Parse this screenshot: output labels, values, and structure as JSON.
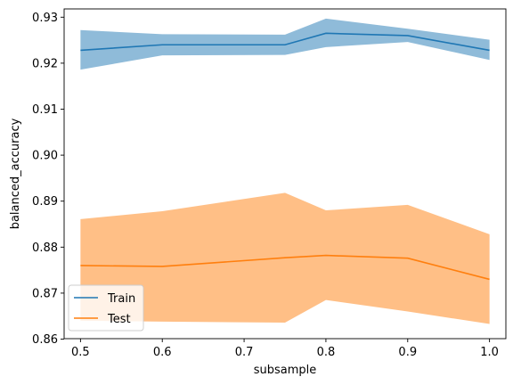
{
  "chart_data": {
    "type": "line",
    "xlabel": "subsample",
    "ylabel": "balanced_accuracy",
    "x": [
      0.5,
      0.6,
      0.75,
      0.8,
      0.9,
      1.0
    ],
    "xlim": [
      0.48,
      1.02
    ],
    "ylim": [
      0.8601,
      0.9318
    ],
    "xticks": [
      0.5,
      0.6,
      0.7,
      0.8,
      0.9,
      1.0
    ],
    "xtick_labels": [
      "0.5",
      "0.6",
      "0.7",
      "0.8",
      "0.9",
      "1.0"
    ],
    "yticks": [
      0.86,
      0.87,
      0.88,
      0.89,
      0.9,
      0.91,
      0.92,
      0.93
    ],
    "ytick_labels": [
      "0.86",
      "0.87",
      "0.88",
      "0.89",
      "0.90",
      "0.91",
      "0.92",
      "0.93"
    ],
    "grid": false,
    "legend_position": "bottom-left",
    "series": [
      {
        "name": "Train",
        "color": "#1f77b4",
        "values": [
          0.9228,
          0.924,
          0.924,
          0.9265,
          0.926,
          0.9228
        ],
        "band_upper": [
          0.9272,
          0.9263,
          0.9262,
          0.9297,
          0.9275,
          0.9251
        ],
        "band_lower": [
          0.9186,
          0.9217,
          0.9218,
          0.9235,
          0.9246,
          0.9207
        ]
      },
      {
        "name": "Test",
        "color": "#ff7f0e",
        "values": [
          0.876,
          0.8758,
          0.8777,
          0.8782,
          0.8776,
          0.873
        ],
        "band_upper": [
          0.8861,
          0.8878,
          0.8918,
          0.888,
          0.8892,
          0.8828
        ],
        "band_lower": [
          0.864,
          0.8638,
          0.8636,
          0.8685,
          0.866,
          0.8633
        ]
      }
    ]
  }
}
